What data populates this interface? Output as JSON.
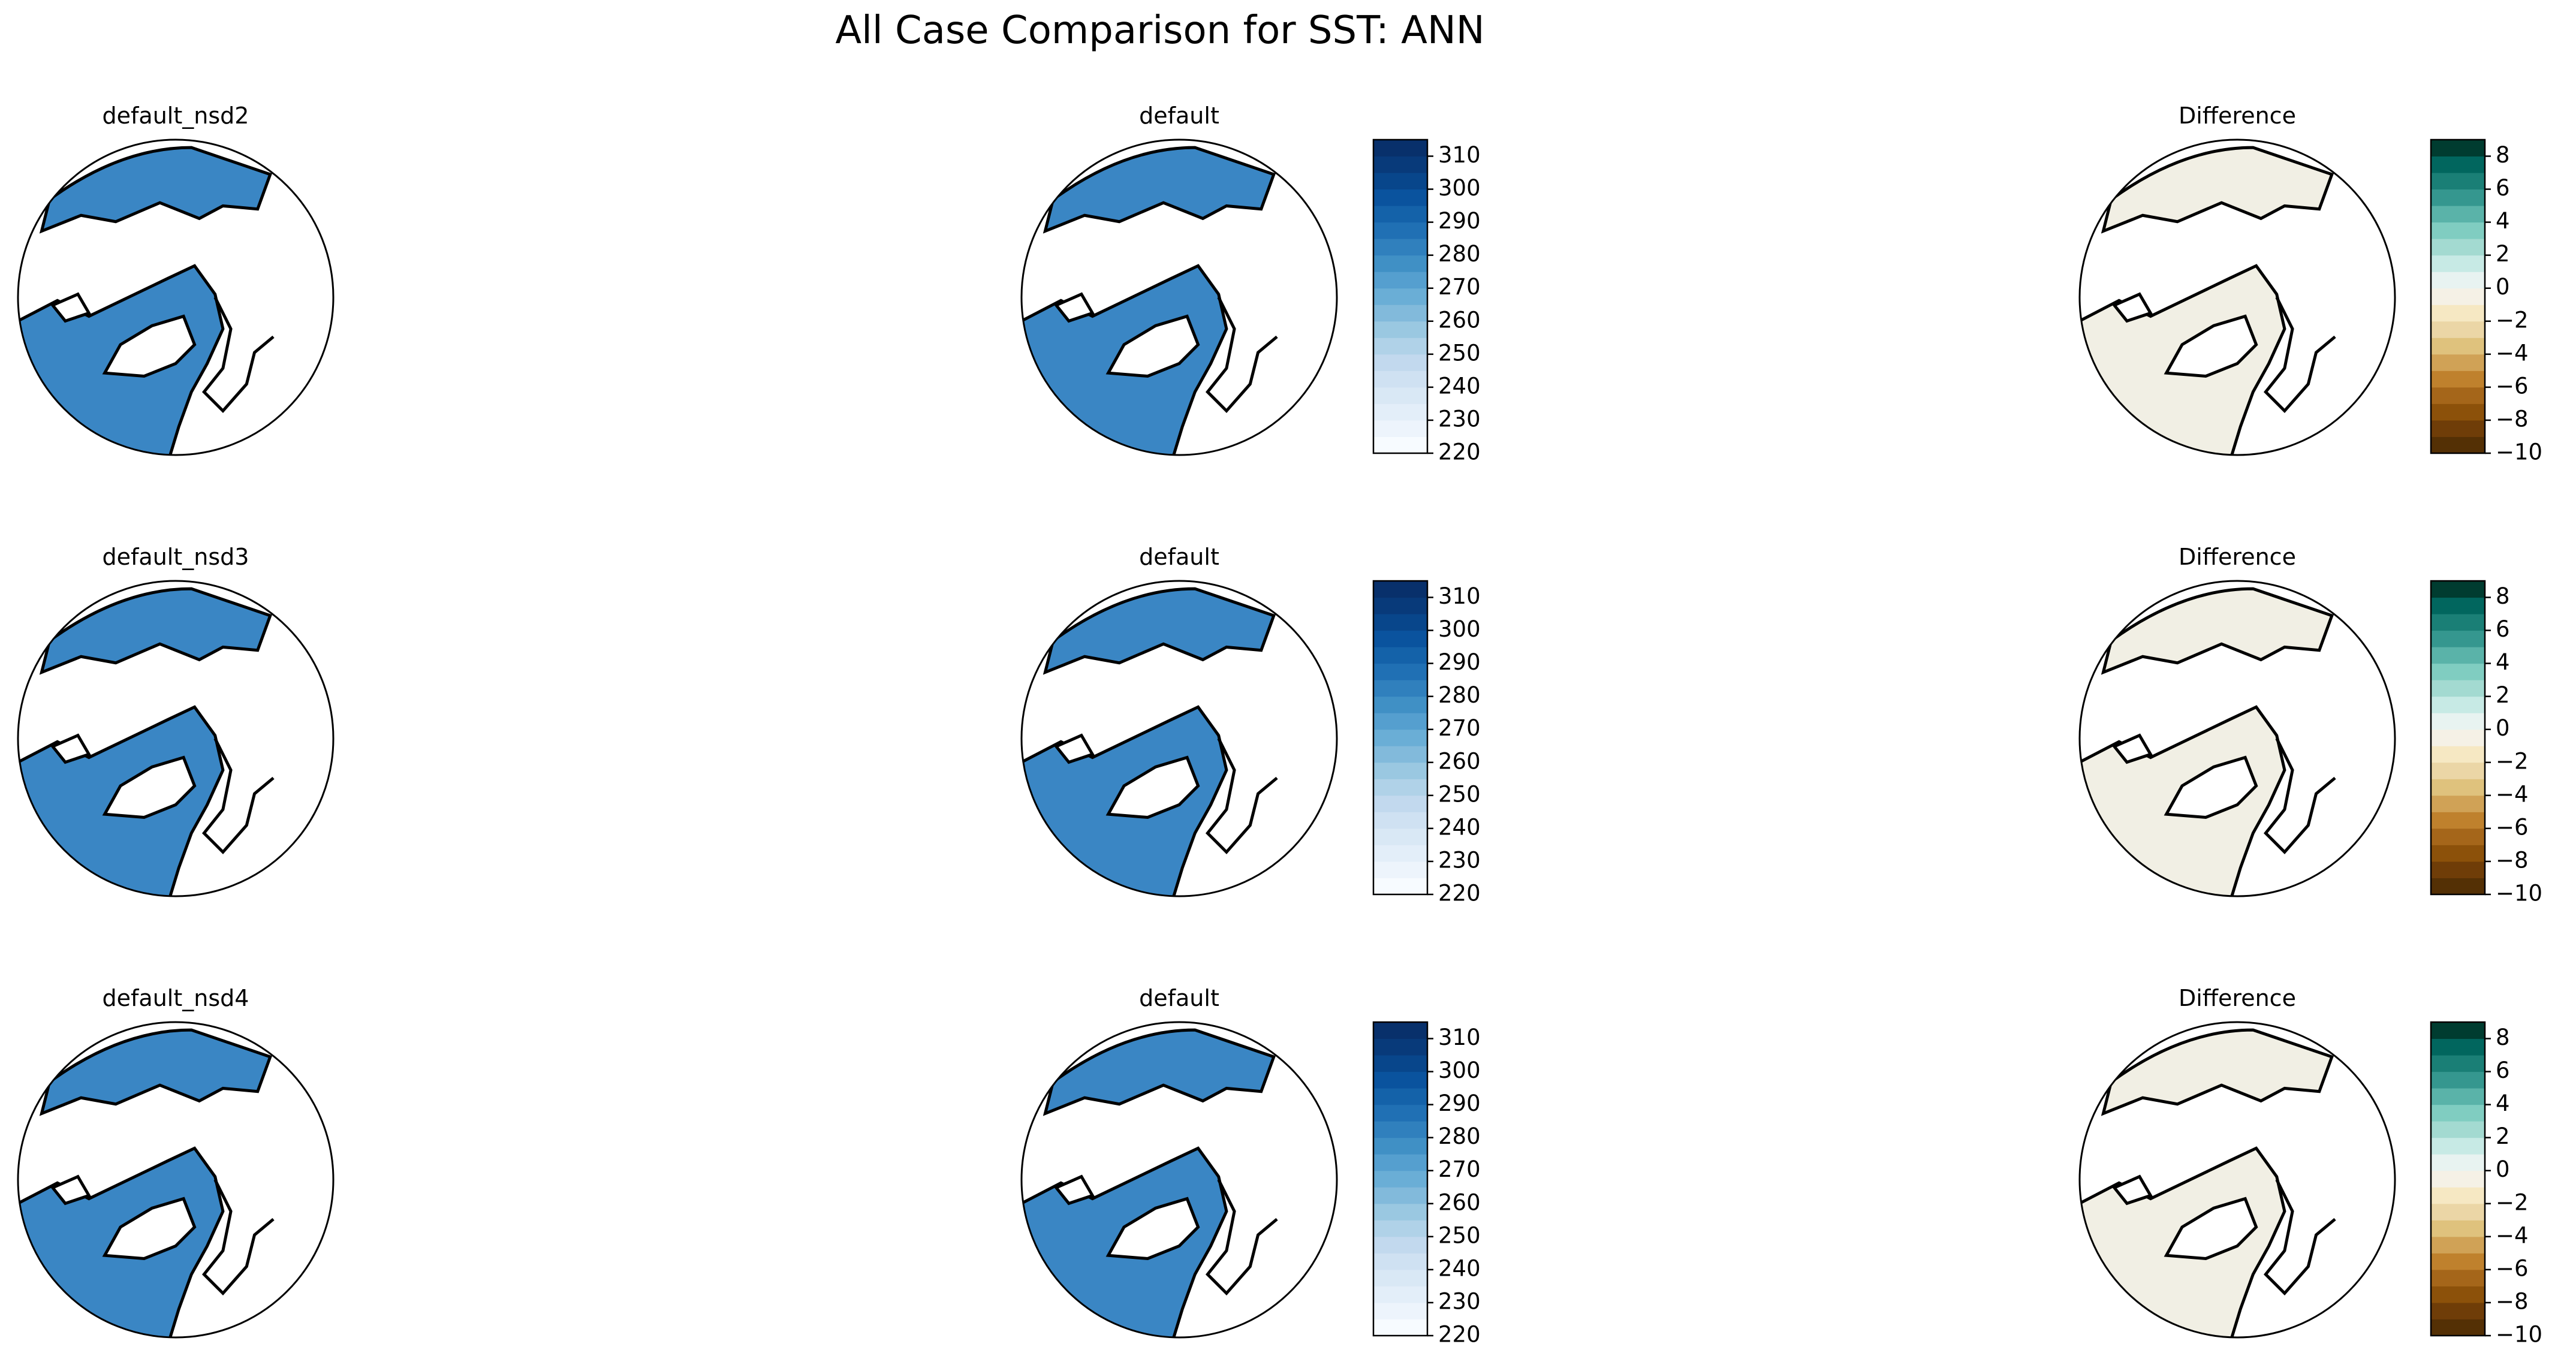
{
  "title": "All Case Comparison for SST: ANN",
  "rows": [
    {
      "case": "default_nsd2",
      "reference": "default",
      "difference": "Difference"
    },
    {
      "case": "default_nsd3",
      "reference": "default",
      "difference": "Difference"
    },
    {
      "case": "default_nsd4",
      "reference": "default",
      "difference": "Difference"
    }
  ],
  "colorbars": {
    "sst": {
      "lim": [
        220,
        315
      ],
      "levels": [
        220,
        225,
        230,
        235,
        240,
        245,
        250,
        255,
        260,
        265,
        270,
        275,
        280,
        285,
        290,
        295,
        300,
        305,
        310,
        315
      ],
      "colors": [
        "#f7fbff",
        "#edf4fc",
        "#e3eef9",
        "#d9e8f5",
        "#cfe1f2",
        "#c2d9ee",
        "#b0d2e8",
        "#9ac8e1",
        "#82badb",
        "#6aaed6",
        "#559fcf",
        "#4090c5",
        "#3080bd",
        "#2070b4",
        "#1462a9",
        "#0a539e",
        "#08468b",
        "#083a7a",
        "#08306b"
      ],
      "ticks": [
        220,
        230,
        240,
        250,
        260,
        270,
        280,
        290,
        300,
        310
      ]
    },
    "diff": {
      "lim": [
        -10,
        9
      ],
      "levels": [
        -10,
        -9,
        -8,
        -7,
        -6,
        -5,
        -4,
        -3,
        -2,
        -1,
        0,
        1,
        2,
        3,
        4,
        5,
        6,
        7,
        8,
        9
      ],
      "colors": [
        "#543005",
        "#6f3d08",
        "#8c510a",
        "#a5661a",
        "#bf812d",
        "#d0a256",
        "#dfc27d",
        "#ebd6a6",
        "#f6e8c3",
        "#f5f1e6",
        "#e8f3f1",
        "#c7eae5",
        "#a3dad1",
        "#80cdc1",
        "#5ab3a9",
        "#35978f",
        "#1a7f76",
        "#01665e",
        "#003c30"
      ],
      "ticks": [
        {
          "value": -10,
          "label": "−10"
        },
        {
          "value": -8,
          "label": "−8"
        },
        {
          "value": -6,
          "label": "−6"
        },
        {
          "value": -4,
          "label": "−4"
        },
        {
          "value": -2,
          "label": "−2"
        },
        0,
        2,
        4,
        6,
        8
      ]
    }
  }
}
